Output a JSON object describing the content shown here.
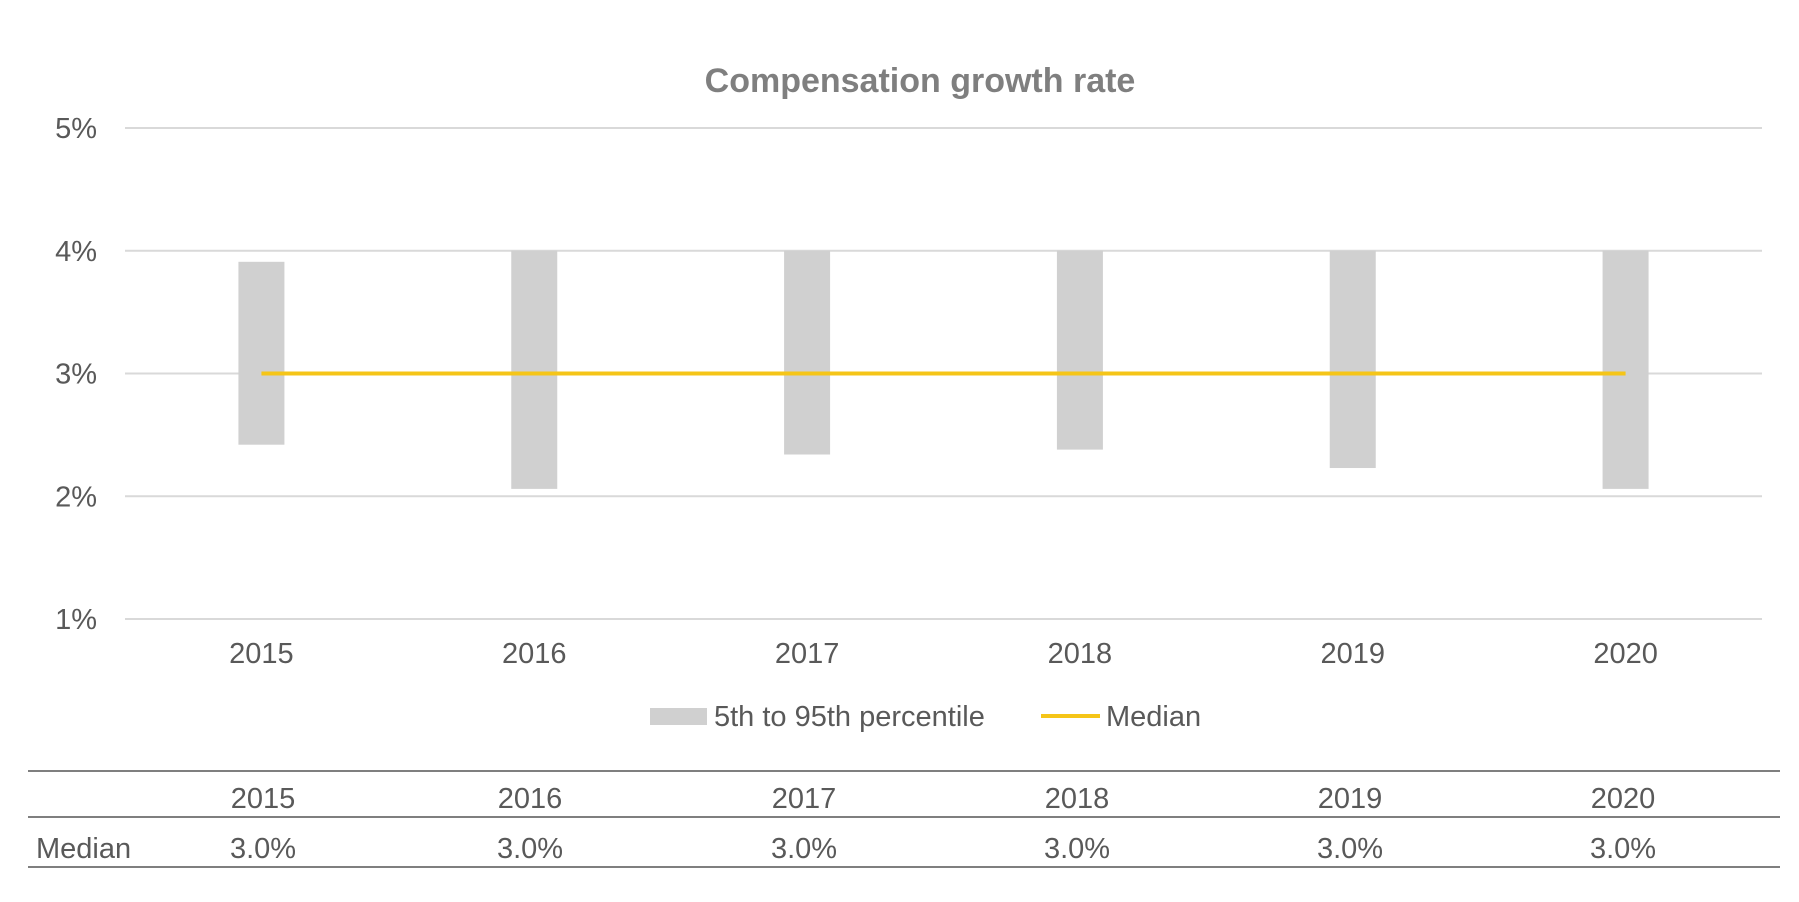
{
  "chart_data": {
    "type": "bar",
    "title": "Compensation growth rate",
    "categories": [
      "2015",
      "2016",
      "2017",
      "2018",
      "2019",
      "2020"
    ],
    "yticks": [
      "5%",
      "4%",
      "3%",
      "2%",
      "1%"
    ],
    "ylim": [
      1,
      5
    ],
    "grid": true,
    "legend_position": "bottom",
    "series": [
      {
        "name": "5th to 95th percentile",
        "kind": "floating-bar",
        "color": "#d0d0d0",
        "low": [
          2.42,
          2.06,
          2.34,
          2.38,
          2.23,
          2.06
        ],
        "high": [
          3.91,
          4.0,
          4.0,
          4.0,
          4.0,
          4.0
        ]
      },
      {
        "name": "Median",
        "kind": "line",
        "color": "#f5c518",
        "values": [
          3.0,
          3.0,
          3.0,
          3.0,
          3.0,
          3.0
        ]
      }
    ]
  },
  "table": {
    "header": [
      "2015",
      "2016",
      "2017",
      "2018",
      "2019",
      "2020"
    ],
    "row_label": "Median",
    "values": [
      "3.0%",
      "3.0%",
      "3.0%",
      "3.0%",
      "3.0%",
      "3.0%"
    ]
  },
  "colors": {
    "gridline": "#d9d9d9",
    "table_rule": "#7f7f7f",
    "text": "#595959",
    "title": "#7f7f7f"
  }
}
